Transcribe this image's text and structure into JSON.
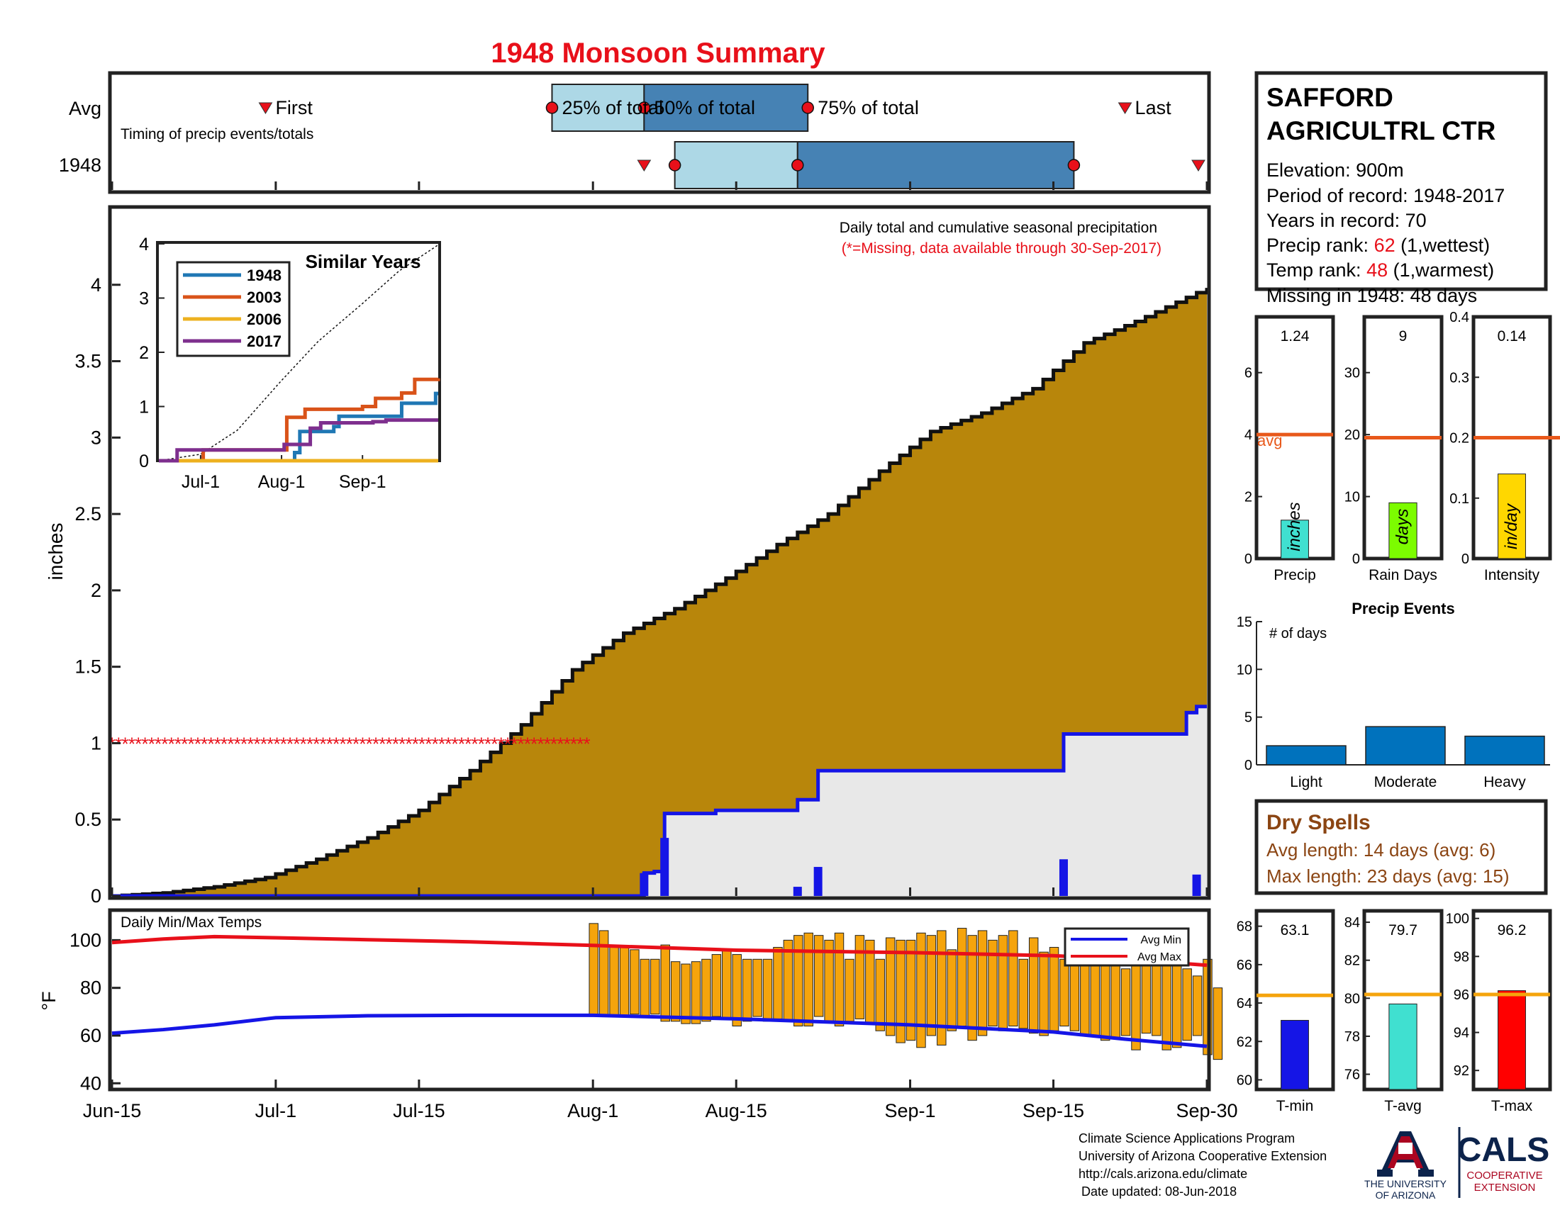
{
  "title": "1948 Monsoon Summary",
  "colors": {
    "title": "#e8101a",
    "cumul_fill": "#b8860b",
    "avg_fill": "#e8e8e8",
    "blue": "#1515e6",
    "red": "#e8101a",
    "temp_bar": "#f5a40c",
    "orange_line": "#e8581a",
    "light_box": "#add8e6",
    "dark_box": "#4682b4",
    "series_1948": "#1f77b4",
    "series_2003": "#d95319",
    "series_2006": "#edb120",
    "series_2017": "#7e2f8e",
    "brown_text": "#8b4513",
    "ua_blue": "#0c234b",
    "ua_red": "#ab0520"
  },
  "timing_panel": {
    "avg_label": "Avg",
    "year_label": "1948",
    "subtitle": "Timing of precip events/totals",
    "first_label": "First",
    "last_label": "Last",
    "p25_label": "25% of total",
    "p50_label": "50% of total",
    "p75_label": "75% of total",
    "avg_dates": {
      "first": "Jun-30",
      "p25": "Jul-28",
      "p50": "Aug-6",
      "p75": "Aug-22",
      "last": "Sep-22"
    },
    "year_dates": {
      "first": "Aug-6",
      "p25": "Aug-9",
      "p50": "Aug-21",
      "p75": "Sep-17",
      "last": "Sep-30"
    }
  },
  "precip_panel": {
    "header": "Daily total and cumulative seasonal precipitation",
    "note": "(*=Missing, data available through 30-Sep-2017)",
    "ylabel": "inches",
    "yticks": [
      "0",
      "0.5",
      "1",
      "1.5",
      "2",
      "2.5",
      "3",
      "3.5",
      "4"
    ],
    "xticks": [
      "Jun-15",
      "Jul-1",
      "Jul-15",
      "Aug-1",
      "Aug-15",
      "Sep-1",
      "Sep-15",
      "Sep-30"
    ]
  },
  "chart_data": [
    {
      "type": "area",
      "title": "Daily total and cumulative seasonal precipitation",
      "ylabel": "inches",
      "ylim": [
        0,
        4.5
      ],
      "x_range": [
        "Jun-15",
        "Sep-30"
      ],
      "series": [
        {
          "name": "Average cumulative",
          "x": [
            "Jun-15",
            "Jun-20",
            "Jun-25",
            "Jun-30",
            "Jul-5",
            "Jul-10",
            "Jul-15",
            "Jul-20",
            "Jul-25",
            "Jul-30",
            "Aug-4",
            "Aug-9",
            "Aug-14",
            "Aug-19",
            "Aug-24",
            "Aug-29",
            "Sep-3",
            "Sep-8",
            "Sep-13",
            "Sep-18",
            "Sep-23",
            "Sep-30"
          ],
          "y": [
            0,
            0.02,
            0.06,
            0.12,
            0.24,
            0.38,
            0.56,
            0.82,
            1.12,
            1.48,
            1.72,
            1.88,
            2.08,
            2.3,
            2.5,
            2.78,
            3.04,
            3.16,
            3.32,
            3.62,
            3.76,
            3.98
          ]
        },
        {
          "name": "1948 cumulative",
          "x": [
            "Jun-15",
            "Aug-5",
            "Aug-6",
            "Aug-7",
            "Aug-8",
            "Aug-13",
            "Aug-21",
            "Aug-23",
            "Sep-16",
            "Sep-28",
            "Sep-29",
            "Sep-30"
          ],
          "y": [
            0,
            0,
            0.15,
            0.16,
            0.54,
            0.56,
            0.63,
            0.82,
            1.06,
            1.2,
            1.24,
            1.24
          ]
        },
        {
          "name": "1948 daily",
          "x": [
            "Aug-6",
            "Aug-8",
            "Aug-21",
            "Aug-23",
            "Sep-16",
            "Sep-29"
          ],
          "y": [
            0.15,
            0.38,
            0.06,
            0.19,
            0.24,
            0.14
          ]
        },
        {
          "name": "Missing",
          "x_range": [
            "Jun-15",
            "Aug-1"
          ],
          "y": 1
        }
      ]
    },
    {
      "type": "line",
      "title": "Similar Years",
      "ylim": [
        0,
        4
      ],
      "yticks": [
        "0",
        "1",
        "2",
        "3",
        "4"
      ],
      "xticks": [
        "Jul-1",
        "Aug-1",
        "Sep-1"
      ],
      "series": [
        {
          "name": "1948",
          "x": [
            "Jun-15",
            "Aug-6",
            "Aug-8",
            "Aug-21",
            "Aug-23",
            "Sep-16",
            "Sep-29",
            "Sep-30"
          ],
          "y": [
            0,
            0.15,
            0.54,
            0.63,
            0.82,
            1.06,
            1.24,
            1.24
          ]
        },
        {
          "name": "2003",
          "x": [
            "Jun-15",
            "Jul-2",
            "Jul-31",
            "Aug-3",
            "Aug-10",
            "Sep-1",
            "Sep-6",
            "Sep-16",
            "Sep-21",
            "Sep-30"
          ],
          "y": [
            0,
            0.2,
            0.2,
            0.8,
            0.95,
            1.0,
            1.15,
            1.25,
            1.5,
            1.52
          ]
        },
        {
          "name": "2006",
          "x": [
            "Jun-15",
            "Sep-30"
          ],
          "y": [
            0,
            0
          ]
        },
        {
          "name": "2017",
          "x": [
            "Jun-15",
            "Jun-22",
            "Aug-2",
            "Aug-12",
            "Aug-16",
            "Sep-5",
            "Sep-10",
            "Sep-30"
          ],
          "y": [
            0,
            0.2,
            0.3,
            0.6,
            0.7,
            0.72,
            0.75,
            0.75
          ]
        },
        {
          "name": "Average",
          "x": [
            "Jun-15",
            "Jul-1",
            "Jul-15",
            "Aug-1",
            "Aug-15",
            "Sep-1",
            "Sep-15",
            "Sep-30"
          ],
          "y": [
            0,
            0.12,
            0.56,
            1.48,
            2.2,
            2.9,
            3.5,
            3.98
          ]
        }
      ]
    },
    {
      "type": "bar",
      "title": "Daily Min/Max Temps",
      "ylabel": "°F",
      "ylim": [
        38,
        112
      ],
      "yticks": [
        "40",
        "60",
        "80",
        "100"
      ],
      "legend": [
        "Avg Min",
        "Avg Max"
      ],
      "series": [
        {
          "name": "Avg Max",
          "x": [
            "Jun-15",
            "Jun-20",
            "Jun-25",
            "Jul-1",
            "Jul-10",
            "Jul-20",
            "Aug-1",
            "Aug-15",
            "Sep-1",
            "Sep-15",
            "Sep-22",
            "Sep-30"
          ],
          "y": [
            99,
            100.5,
            101.5,
            101,
            100.2,
            99.3,
            97.8,
            95.8,
            94.8,
            93.5,
            92,
            89.5
          ]
        },
        {
          "name": "Avg Min",
          "x": [
            "Jun-15",
            "Jun-20",
            "Jun-25",
            "Jul-1",
            "Jul-10",
            "Jul-20",
            "Aug-1",
            "Aug-15",
            "Sep-1",
            "Sep-15",
            "Sep-22",
            "Sep-30"
          ],
          "y": [
            61,
            62.5,
            64.5,
            67.5,
            68.3,
            68.5,
            68.5,
            67,
            64.5,
            61.5,
            58.5,
            55.5
          ]
        },
        {
          "name": "1948 daily range",
          "low": [
            68,
            68,
            68,
            68,
            69,
            68,
            69,
            66,
            66,
            65,
            65,
            66,
            68,
            67,
            64,
            66,
            68,
            66,
            67,
            66,
            64,
            64,
            68,
            66,
            64,
            66,
            67,
            65,
            62,
            60,
            57,
            58,
            55,
            60,
            56,
            62,
            64,
            58,
            60,
            64,
            62,
            64,
            63,
            61,
            60,
            62,
            64,
            62,
            60,
            60,
            58,
            59,
            60,
            54,
            61,
            60,
            54,
            55,
            58,
            60,
            52,
            50
          ],
          "high": [
            107,
            104,
            98,
            97,
            96,
            92,
            92,
            98,
            91,
            90,
            91,
            92,
            94,
            96,
            94,
            92,
            92,
            92,
            97,
            100,
            102,
            103,
            102,
            100,
            103,
            92,
            102,
            100,
            92,
            101,
            100,
            100,
            103,
            102,
            104,
            96,
            105,
            102,
            104,
            100,
            102,
            104,
            92,
            101,
            95,
            97,
            92,
            93,
            94,
            96,
            98,
            92,
            88,
            96,
            94,
            90,
            92,
            95,
            88,
            85,
            92,
            80
          ]
        }
      ]
    },
    {
      "type": "bar",
      "title": "Precip",
      "values": [
        1.24
      ],
      "labels": [
        "1.24"
      ],
      "avg": 4,
      "avg_label": "avg",
      "unit_label": "inches",
      "ylim": [
        0,
        7.8
      ],
      "yticks": [
        "0",
        "2",
        "4",
        "6"
      ],
      "xlabel": "Precip"
    },
    {
      "type": "bar",
      "title": "Rain Days",
      "values": [
        9
      ],
      "labels": [
        "9"
      ],
      "avg": 19.5,
      "unit_label": "days",
      "ylim": [
        0,
        39
      ],
      "yticks": [
        "0",
        "10",
        "20",
        "30"
      ],
      "xlabel": "Rain Days"
    },
    {
      "type": "bar",
      "title": "Intensity",
      "values": [
        0.14
      ],
      "labels": [
        "0.14"
      ],
      "avg": 0.2,
      "unit_label": "in/day",
      "ylim": [
        0,
        0.4
      ],
      "yticks": [
        "0",
        "0.1",
        "0.2",
        "0.3",
        "0.4"
      ],
      "xlabel": "Intensity"
    },
    {
      "type": "bar",
      "title": "Precip Events",
      "ylabel": "# of days",
      "categories": [
        "Light",
        "Moderate",
        "Heavy"
      ],
      "values": [
        2,
        4,
        3
      ],
      "ylim": [
        0,
        15
      ],
      "yticks": [
        "0",
        "5",
        "10",
        "15"
      ]
    },
    {
      "type": "bar",
      "title": "T-min",
      "values": [
        63.1
      ],
      "labels": [
        "63.1"
      ],
      "avg": 64.4,
      "ylim": [
        59.5,
        68.8
      ],
      "yticks": [
        "60",
        "62",
        "64",
        "66",
        "68"
      ],
      "xlabel": "T-min"
    },
    {
      "type": "bar",
      "title": "T-avg",
      "values": [
        79.7
      ],
      "labels": [
        "79.7"
      ],
      "avg": 80.2,
      "ylim": [
        75.2,
        84.6
      ],
      "yticks": [
        "76",
        "78",
        "80",
        "82",
        "84"
      ],
      "xlabel": "T-avg"
    },
    {
      "type": "bar",
      "title": "T-max",
      "values": [
        96.2
      ],
      "labels": [
        "96.2"
      ],
      "avg": 96.0,
      "ylim": [
        91.0,
        100.4
      ],
      "yticks": [
        "92",
        "94",
        "96",
        "98",
        "100"
      ],
      "xlabel": "T-max"
    }
  ],
  "inset": {
    "title": "Similar Years",
    "legend": [
      "1948",
      "2003",
      "2006",
      "2017"
    ]
  },
  "temp_panel": {
    "header": "Daily Min/Max Temps",
    "ylabel": "°F",
    "legend_min": "Avg Min",
    "legend_max": "Avg Max"
  },
  "station": {
    "name_line1": "SAFFORD",
    "name_line2": "AGRICULTRL CTR",
    "elevation": "Elevation: 900m",
    "period": "Period of record: 1948-2017",
    "years": "Years in record: 70",
    "precip_rank_label": "Precip rank: ",
    "precip_rank_value": "62",
    "precip_rank_suffix": " (1,wettest)",
    "temp_rank_label": "Temp rank: ",
    "temp_rank_value": "48",
    "temp_rank_suffix": " (1,warmest)",
    "missing": "Missing in 1948: 48 days"
  },
  "dry_spells": {
    "title": "Dry Spells",
    "avg_length": "Avg length: 14 days (avg: 6)",
    "max_length": "Max length: 23 days (avg: 15)"
  },
  "footer": {
    "line1": "Climate Science Applications Program",
    "line2": "University of Arizona Cooperative Extension",
    "line3": "http://cals.arizona.edu/climate",
    "line4": "Date updated: 08-Jun-2018",
    "ua_line1": "THE UNIVERSITY",
    "ua_line2": "OF ARIZONA",
    "cals": "CALS",
    "cals_sub1": "COOPERATIVE",
    "cals_sub2": "EXTENSION"
  }
}
